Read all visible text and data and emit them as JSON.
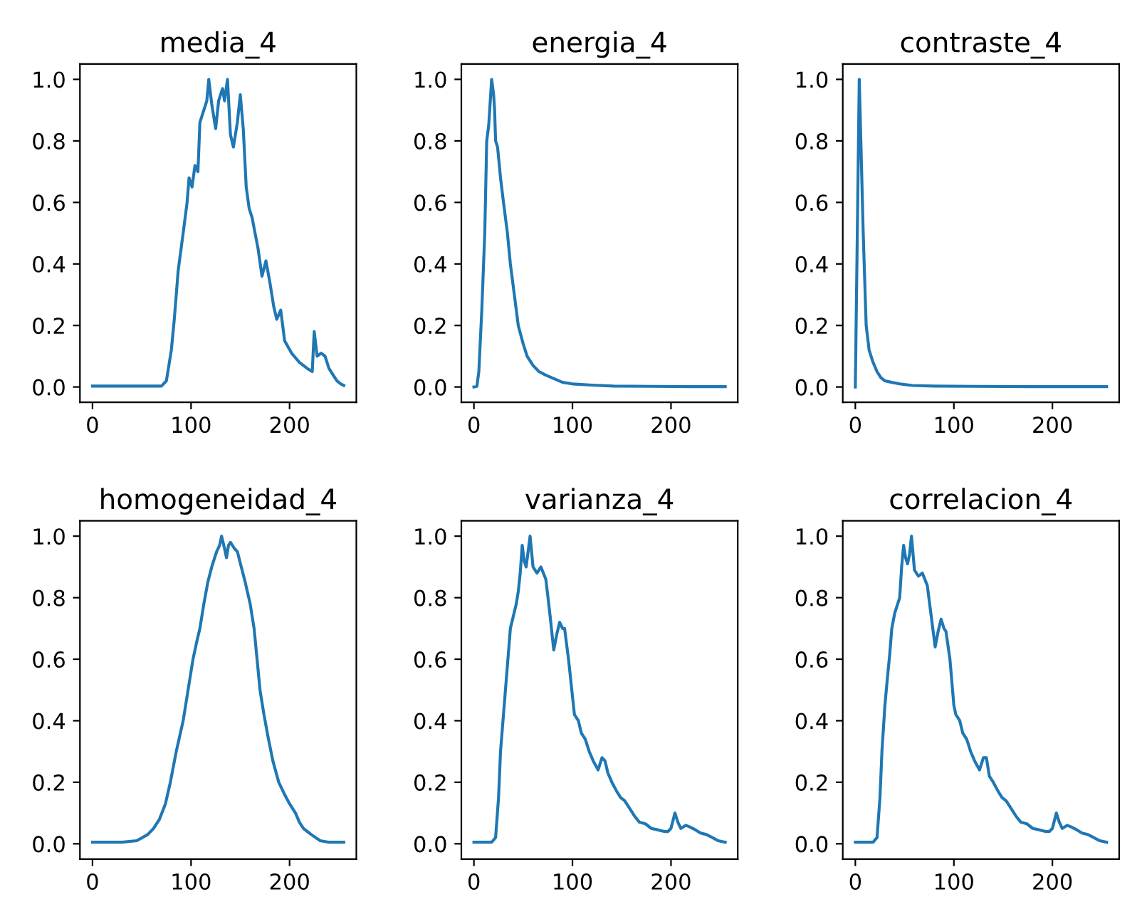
{
  "chart_data": [
    {
      "type": "line",
      "title": "media_4",
      "color": "#1f77b4",
      "xlim": [
        -12.75,
        267.75
      ],
      "ylim": [
        -0.05,
        1.05
      ],
      "xticks": [
        0,
        100,
        200
      ],
      "yticks": [
        {
          "value": 0,
          "label": "0.0"
        },
        {
          "value": 0.2,
          "label": "0.2"
        },
        {
          "value": 0.4,
          "label": "0.4"
        },
        {
          "value": 0.6,
          "label": "0.6"
        },
        {
          "value": 0.8,
          "label": "0.8"
        },
        {
          "value": 1,
          "label": "1.0"
        }
      ],
      "grid": false,
      "x": [
        0,
        40,
        70,
        75,
        80,
        83,
        87,
        92,
        96,
        98,
        101,
        104,
        107,
        109,
        113,
        116,
        118,
        121,
        125,
        128,
        132,
        134,
        137,
        140,
        143,
        147,
        150,
        153,
        156,
        159,
        162,
        165,
        168,
        172,
        176,
        180,
        184,
        187,
        191,
        195,
        202,
        210,
        218,
        223,
        225,
        228,
        232,
        236,
        240,
        244,
        248,
        252,
        255
      ],
      "values": [
        0.003,
        0.003,
        0.003,
        0.02,
        0.12,
        0.22,
        0.38,
        0.5,
        0.6,
        0.68,
        0.65,
        0.72,
        0.7,
        0.86,
        0.9,
        0.93,
        1.0,
        0.92,
        0.84,
        0.93,
        0.97,
        0.93,
        1.0,
        0.82,
        0.78,
        0.86,
        0.95,
        0.84,
        0.65,
        0.58,
        0.55,
        0.5,
        0.45,
        0.36,
        0.41,
        0.34,
        0.26,
        0.22,
        0.25,
        0.15,
        0.11,
        0.08,
        0.06,
        0.05,
        0.18,
        0.1,
        0.11,
        0.1,
        0.06,
        0.04,
        0.02,
        0.01,
        0.005
      ]
    },
    {
      "type": "line",
      "title": "energia_4",
      "color": "#1f77b4",
      "xlim": [
        -12.75,
        267.75
      ],
      "ylim": [
        -0.05,
        1.05
      ],
      "xticks": [
        0,
        100,
        200
      ],
      "yticks": [
        {
          "value": 0,
          "label": "0.0"
        },
        {
          "value": 0.2,
          "label": "0.2"
        },
        {
          "value": 0.4,
          "label": "0.4"
        },
        {
          "value": 0.6,
          "label": "0.6"
        },
        {
          "value": 0.8,
          "label": "0.8"
        },
        {
          "value": 1,
          "label": "1.0"
        }
      ],
      "grid": false,
      "x": [
        0,
        3,
        5,
        8,
        11,
        13,
        15,
        18,
        20,
        21,
        22,
        24,
        27,
        30,
        34,
        37,
        41,
        45,
        50,
        54,
        60,
        66,
        72,
        79,
        90,
        100,
        120,
        142,
        180,
        220,
        255
      ],
      "values": [
        0.0,
        0.002,
        0.05,
        0.25,
        0.5,
        0.8,
        0.85,
        1.0,
        0.95,
        0.9,
        0.8,
        0.78,
        0.68,
        0.6,
        0.5,
        0.4,
        0.3,
        0.2,
        0.14,
        0.1,
        0.07,
        0.05,
        0.04,
        0.03,
        0.015,
        0.01,
        0.006,
        0.003,
        0.002,
        0.001,
        0.001
      ]
    },
    {
      "type": "line",
      "title": "contraste_4",
      "color": "#1f77b4",
      "xlim": [
        -12.75,
        267.75
      ],
      "ylim": [
        -0.05,
        1.05
      ],
      "xticks": [
        0,
        100,
        200
      ],
      "yticks": [
        {
          "value": 0,
          "label": "0.0"
        },
        {
          "value": 0.2,
          "label": "0.2"
        },
        {
          "value": 0.4,
          "label": "0.4"
        },
        {
          "value": 0.6,
          "label": "0.6"
        },
        {
          "value": 0.8,
          "label": "0.8"
        },
        {
          "value": 1,
          "label": "1.0"
        }
      ],
      "grid": false,
      "x": [
        0,
        4,
        6,
        8,
        11,
        14,
        18,
        22,
        26,
        30,
        37,
        45,
        58,
        80,
        120,
        180,
        255
      ],
      "values": [
        0.0,
        1.0,
        0.75,
        0.5,
        0.2,
        0.12,
        0.08,
        0.05,
        0.03,
        0.02,
        0.015,
        0.01,
        0.005,
        0.003,
        0.002,
        0.001,
        0.001
      ]
    },
    {
      "type": "line",
      "title": "homogeneidad_4",
      "color": "#1f77b4",
      "xlim": [
        -12.75,
        267.75
      ],
      "ylim": [
        -0.05,
        1.05
      ],
      "xticks": [
        0,
        100,
        200
      ],
      "yticks": [
        {
          "value": 0,
          "label": "0.0"
        },
        {
          "value": 0.2,
          "label": "0.2"
        },
        {
          "value": 0.4,
          "label": "0.4"
        },
        {
          "value": 0.6,
          "label": "0.6"
        },
        {
          "value": 0.8,
          "label": "0.8"
        },
        {
          "value": 1,
          "label": "1.0"
        }
      ],
      "grid": false,
      "x": [
        0,
        30,
        45,
        56,
        62,
        68,
        74,
        79,
        85,
        92,
        97,
        102,
        106,
        109,
        113,
        117,
        121,
        126,
        129,
        131,
        134,
        136,
        138,
        140,
        144,
        147,
        151,
        155,
        160,
        164,
        167,
        170,
        174,
        178,
        183,
        189,
        192,
        195,
        200,
        206,
        210,
        214,
        222,
        231,
        240,
        255
      ],
      "values": [
        0.005,
        0.005,
        0.01,
        0.03,
        0.05,
        0.08,
        0.13,
        0.2,
        0.3,
        0.4,
        0.5,
        0.6,
        0.66,
        0.7,
        0.78,
        0.85,
        0.9,
        0.95,
        0.97,
        1.0,
        0.96,
        0.93,
        0.97,
        0.98,
        0.96,
        0.95,
        0.9,
        0.85,
        0.78,
        0.7,
        0.6,
        0.5,
        0.42,
        0.35,
        0.27,
        0.2,
        0.18,
        0.16,
        0.13,
        0.1,
        0.07,
        0.05,
        0.03,
        0.01,
        0.005,
        0.005
      ]
    },
    {
      "type": "line",
      "title": "varianza_4",
      "color": "#1f77b4",
      "xlim": [
        -12.75,
        267.75
      ],
      "ylim": [
        -0.05,
        1.05
      ],
      "xticks": [
        0,
        100,
        200
      ],
      "yticks": [
        {
          "value": 0,
          "label": "0.0"
        },
        {
          "value": 0.2,
          "label": "0.2"
        },
        {
          "value": 0.4,
          "label": "0.4"
        },
        {
          "value": 0.6,
          "label": "0.6"
        },
        {
          "value": 0.8,
          "label": "0.8"
        },
        {
          "value": 1,
          "label": "1.0"
        }
      ],
      "grid": false,
      "x": [
        0,
        18,
        22,
        25,
        27,
        30,
        32,
        35,
        37,
        40,
        43,
        45,
        47,
        49,
        51,
        53,
        55,
        57,
        60,
        64,
        68,
        73,
        77,
        81,
        84,
        87,
        90,
        92,
        96,
        100,
        102,
        106,
        109,
        113,
        117,
        121,
        126,
        130,
        133,
        136,
        140,
        145,
        149,
        153,
        157,
        163,
        168,
        174,
        180,
        187,
        193,
        197,
        200,
        204,
        207,
        210,
        215,
        219,
        225,
        230,
        236,
        242,
        248,
        255
      ],
      "values": [
        0.005,
        0.005,
        0.02,
        0.15,
        0.3,
        0.42,
        0.5,
        0.62,
        0.7,
        0.74,
        0.78,
        0.82,
        0.88,
        0.97,
        0.92,
        0.9,
        0.95,
        1.0,
        0.9,
        0.88,
        0.9,
        0.86,
        0.75,
        0.63,
        0.68,
        0.72,
        0.7,
        0.7,
        0.6,
        0.48,
        0.42,
        0.4,
        0.36,
        0.34,
        0.3,
        0.27,
        0.24,
        0.28,
        0.27,
        0.23,
        0.2,
        0.17,
        0.15,
        0.14,
        0.12,
        0.09,
        0.07,
        0.065,
        0.05,
        0.045,
        0.04,
        0.04,
        0.05,
        0.1,
        0.07,
        0.05,
        0.06,
        0.055,
        0.045,
        0.035,
        0.03,
        0.02,
        0.01,
        0.005
      ]
    },
    {
      "type": "line",
      "title": "correlacion_4",
      "color": "#1f77b4",
      "xlim": [
        -12.75,
        267.75
      ],
      "ylim": [
        -0.05,
        1.05
      ],
      "xticks": [
        0,
        100,
        200
      ],
      "yticks": [
        {
          "value": 0,
          "label": "0.0"
        },
        {
          "value": 0.2,
          "label": "0.2"
        },
        {
          "value": 0.4,
          "label": "0.4"
        },
        {
          "value": 0.6,
          "label": "0.6"
        },
        {
          "value": 0.8,
          "label": "0.8"
        },
        {
          "value": 1,
          "label": "1.0"
        }
      ],
      "grid": false,
      "x": [
        0,
        18,
        22,
        25,
        27,
        30,
        32,
        35,
        37,
        40,
        43,
        45,
        47,
        49,
        51,
        53,
        55,
        57,
        60,
        64,
        68,
        73,
        77,
        81,
        84,
        87,
        90,
        92,
        96,
        100,
        102,
        106,
        109,
        113,
        117,
        121,
        126,
        130,
        133,
        136,
        140,
        145,
        149,
        153,
        157,
        163,
        168,
        174,
        180,
        187,
        193,
        197,
        200,
        204,
        207,
        210,
        215,
        219,
        225,
        230,
        236,
        242,
        248,
        255
      ],
      "values": [
        0.005,
        0.005,
        0.02,
        0.15,
        0.3,
        0.45,
        0.52,
        0.62,
        0.7,
        0.75,
        0.78,
        0.8,
        0.9,
        0.97,
        0.93,
        0.91,
        0.94,
        1.0,
        0.89,
        0.87,
        0.88,
        0.84,
        0.74,
        0.64,
        0.69,
        0.73,
        0.7,
        0.69,
        0.6,
        0.45,
        0.42,
        0.4,
        0.36,
        0.34,
        0.3,
        0.27,
        0.24,
        0.28,
        0.28,
        0.22,
        0.2,
        0.17,
        0.15,
        0.14,
        0.12,
        0.09,
        0.07,
        0.065,
        0.05,
        0.045,
        0.04,
        0.04,
        0.05,
        0.1,
        0.07,
        0.05,
        0.06,
        0.055,
        0.045,
        0.035,
        0.03,
        0.02,
        0.01,
        0.005
      ]
    }
  ]
}
